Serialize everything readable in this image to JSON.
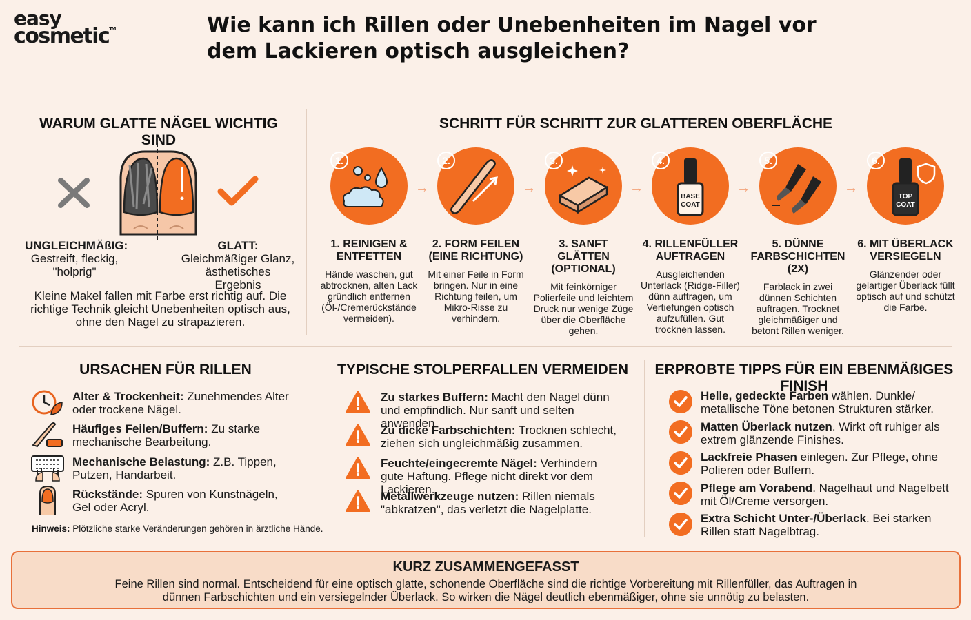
{
  "logo": {
    "line1": "easy",
    "line2": "cosmetic",
    "tm": "TM"
  },
  "title": "Wie kann ich Rillen oder Unebenheiten im Nagel vor dem Lackieren optisch ausgleichen?",
  "why": {
    "heading": "WARUM GLATTE NÄGEL WICHTIG SIND",
    "bad_title": "UNGLEICHMÄßIG:",
    "bad_text": "Gestreift, fleckig, \"holprig\"",
    "good_title": "GLATT:",
    "good_text": "Gleichmäßiger Glanz, ästhetisches Ergebnis",
    "text": "Kleine Makel fallen mit Farbe erst richtig auf. Die richtige Technik gleicht Unebenheiten optisch aus, ohne den Nagel zu strapazieren."
  },
  "steps": {
    "heading": "SCHRITT FÜR SCHRITT ZUR GLATTEREN OBERFLÄCHE",
    "items": [
      {
        "badge": "1.",
        "title": "1. REINIGEN & ENTFETTEN",
        "desc": "Hände waschen, gut abtrocknen, alten Lack gründlich entfernen (Öl-/Cremerückstände vermeiden).",
        "icon": "soap-bubbles-icon"
      },
      {
        "badge": "2.",
        "title": "2. FORM FEILEN (EINE RICHTUNG)",
        "desc": "Mit einer Feile in Form bringen. Nur in eine Richtung feilen, um Mikro-Risse zu verhindern.",
        "icon": "nail-file-icon"
      },
      {
        "badge": "3.",
        "title": "3. SANFT GLÄTTEN (OPTIONAL)",
        "desc": "Mit feinkörniger Polierfeile und leichtem Druck nur wenige Züge über die Oberfläche gehen.",
        "icon": "buffer-block-icon"
      },
      {
        "badge": "4.",
        "title": "4. RILLENFÜLLER AUFTRAGEN",
        "desc": "Ausgleichenden Unterlack (Ridge-Filler) dünn auftragen, um Vertiefungen optisch aufzufüllen. Gut trocknen lassen.",
        "icon": "base-coat-bottle-icon",
        "bottle_label": "BASE COAT"
      },
      {
        "badge": "5.",
        "title": "5. DÜNNE FARBSCHICHTEN (2X)",
        "desc": "Farblack in zwei dünnen Schichten auftragen. Trocknet gleichmäßiger und betont Rillen weniger.",
        "icon": "two-brushes-icon"
      },
      {
        "badge": "6.",
        "title": "6. MIT ÜBERLACK VERSIEGELN",
        "desc": "Glänzender oder gelartiger Überlack füllt optisch auf und schützt die Farbe.",
        "icon": "top-coat-bottle-icon",
        "bottle_label": "TOP COAT"
      }
    ]
  },
  "causes": {
    "heading": "URSACHEN FÜR RILLEN",
    "items": [
      {
        "bold": "Alter & Trockenheit:",
        "text": " Zunehmendes Alter oder trockene Nägel.",
        "icon": "clock-leaf-icon"
      },
      {
        "bold": "Häufiges Feilen/Buffern:",
        "text": " Zu starke mechanische Bearbeitung.",
        "icon": "file-buffer-icon"
      },
      {
        "bold": "Mechanische Belastung:",
        "text": " Z.B. Tippen, Putzen, Handarbeit.",
        "icon": "keyboard-hands-icon"
      },
      {
        "bold": "Rückstände:",
        "text": " Spuren von Kunstnägeln, Gel oder Acryl.",
        "icon": "finger-nail-icon"
      }
    ],
    "hint_bold": "Hinweis:",
    "hint_text": " Plötzliche starke Veränderungen gehören in ärztliche Hände."
  },
  "pitfalls": {
    "heading": "TYPISCHE STOLPERFALLEN VERMEIDEN",
    "items": [
      {
        "bold": "Zu starkes Buffern:",
        "text": " Macht den Nagel dünn und empfindlich. Nur sanft und selten anwenden."
      },
      {
        "bold": "Zu dicke Farbschichten:",
        "text": " Trocknen schlecht, ziehen sich ungleichmäßig zusammen."
      },
      {
        "bold": "Feuchte/eingecremte Nägel:",
        "text": " Verhindern gute Haftung. Pflege nicht direkt vor dem Lackieren."
      },
      {
        "bold": "Metallwerkzeuge nutzen:",
        "text": " Rillen niemals \"abkratzen\", das verletzt die Nagelplatte."
      }
    ]
  },
  "tips": {
    "heading": "ERPROBTE TIPPS FÜR EIN EBENMÄßIGES FINISH",
    "items": [
      {
        "bold": "Helle, gedeckte Farben",
        "text": " wählen. Dunkle/ metallische Töne betonen Strukturen stärker."
      },
      {
        "bold": "Matten Überlack nutzen",
        "text": ". Wirkt oft ruhiger als extrem glänzende Finishes."
      },
      {
        "bold": "Lackfreie Phasen",
        "text": " einlegen. Zur Pflege, ohne Polieren oder Buffern."
      },
      {
        "bold": "Pflege am Vorabend",
        "text": ". Nagelhaut und Nagelbett mit Öl/Creme versorgen."
      },
      {
        "bold": "Extra Schicht Unter-/Überlack",
        "text": ". Bei starken Rillen statt Nagelbtrag."
      }
    ]
  },
  "summary": {
    "title": "KURZ ZUSAMMENGEFASST",
    "text": "Feine Rillen sind normal. Entscheidend für eine optisch glatte, schonende Oberfläche sind die richtige Vorbereitung mit Rillenfüller, das Auftragen in dünnen Farbschichten und ein versiegelnder Überlack. So wirken die Nägel deutlich ebenmäßiger, ohne sie unnötig zu belasten."
  },
  "colors": {
    "accent": "#f26d21",
    "background": "#fbf0e8",
    "summary_bg": "#f8dcc8"
  }
}
